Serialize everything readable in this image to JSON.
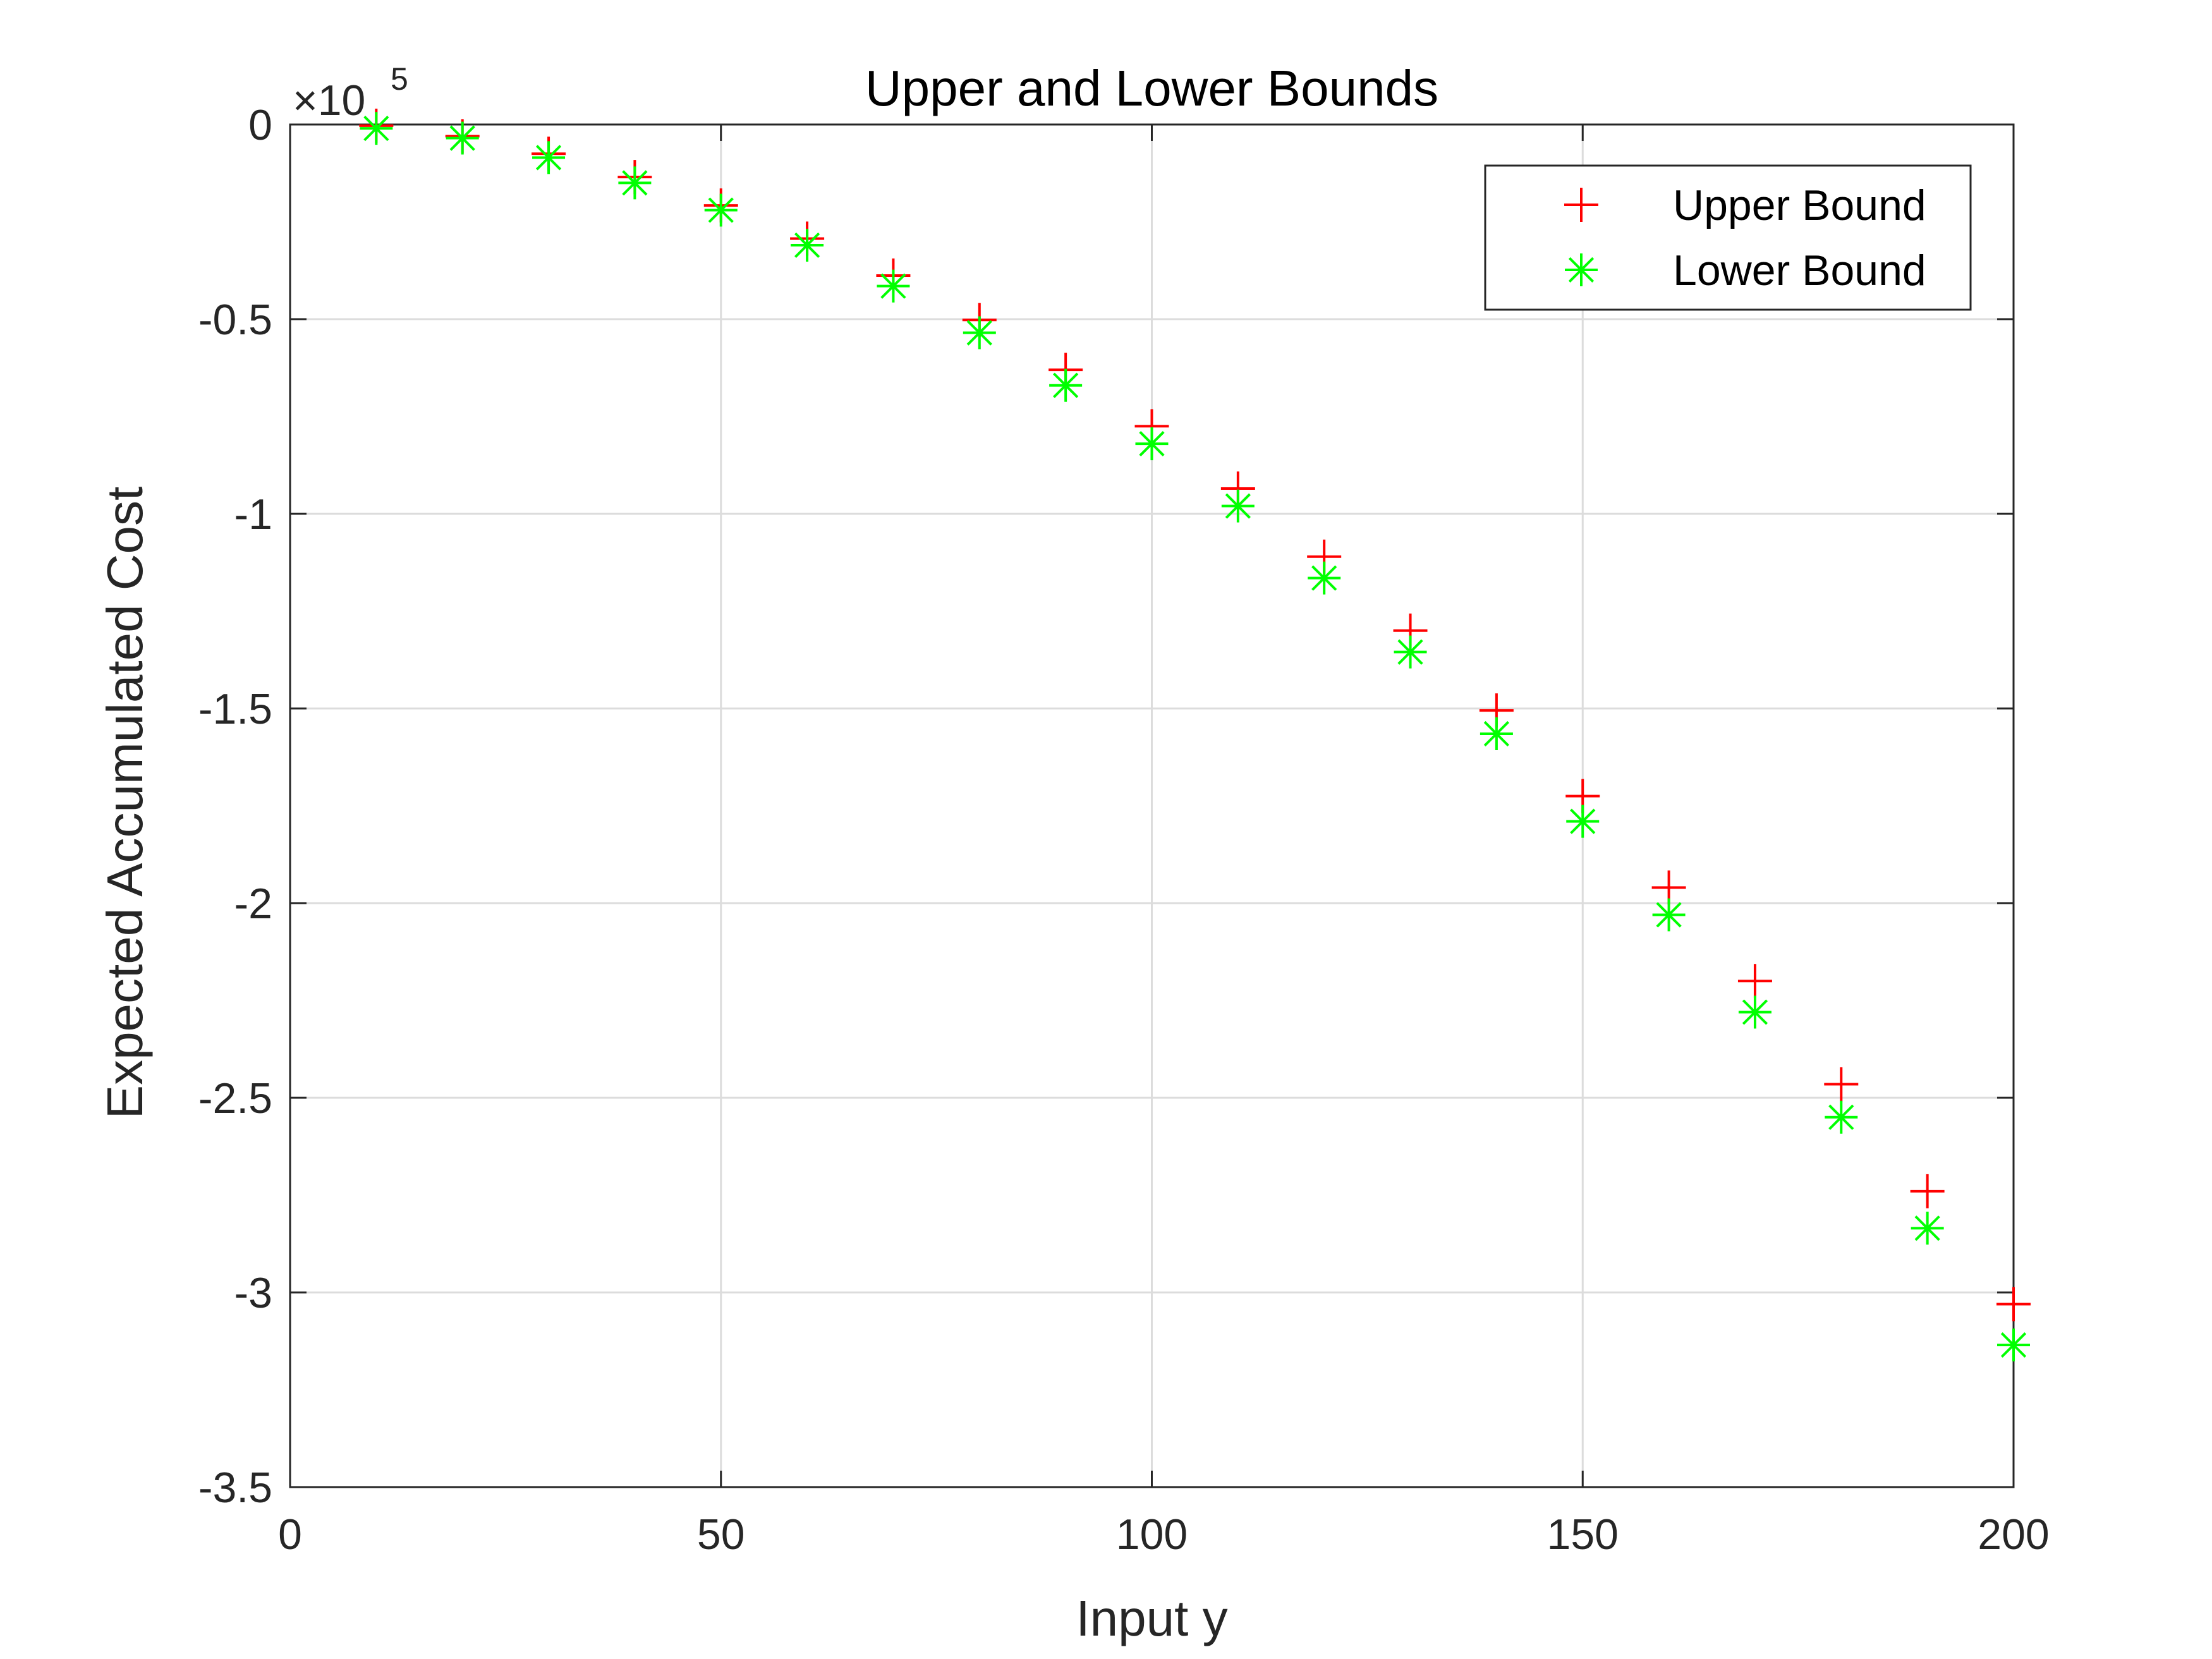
{
  "chart_data": {
    "type": "scatter",
    "title": "Upper and Lower Bounds",
    "xlabel": "Input y",
    "ylabel": "Expected Accumulated Cost",
    "xlim": [
      0,
      200
    ],
    "ylim": [
      -350000,
      0
    ],
    "y_exponent": {
      "base": "×10",
      "power": "5"
    },
    "x_ticks": [
      0,
      50,
      100,
      150,
      200
    ],
    "x_tick_labels": [
      "0",
      "50",
      "100",
      "150",
      "200"
    ],
    "y_ticks": [
      0,
      -50000,
      -100000,
      -150000,
      -200000,
      -250000,
      -300000,
      -350000
    ],
    "y_tick_labels": [
      "0",
      "-0.5",
      "-1",
      "-1.5",
      "-2",
      "-2.5",
      "-3",
      "-3.5"
    ],
    "grid": true,
    "legend_position": "top-right",
    "x": [
      10,
      20,
      30,
      40,
      50,
      60,
      70,
      80,
      90,
      100,
      110,
      120,
      130,
      140,
      150,
      160,
      170,
      180,
      190,
      200
    ],
    "series": [
      {
        "name": "Upper Bound",
        "marker": "+",
        "color": "#ff0000",
        "values": [
          -300,
          -3000,
          -7500,
          -13500,
          -20800,
          -29300,
          -38800,
          -50200,
          -63000,
          -77500,
          -93500,
          -111000,
          -130000,
          -150500,
          -172500,
          -196000,
          -220000,
          -246500,
          -274000,
          -303000
        ]
      },
      {
        "name": "Lower Bound",
        "marker": "*",
        "color": "#00ff00",
        "values": [
          -1000,
          -3500,
          -8500,
          -15000,
          -22000,
          -31000,
          -41500,
          -53500,
          -67000,
          -82000,
          -98000,
          -116500,
          -135500,
          -156500,
          -179000,
          -203000,
          -228000,
          -255000,
          -283500,
          -313500
        ]
      }
    ]
  }
}
